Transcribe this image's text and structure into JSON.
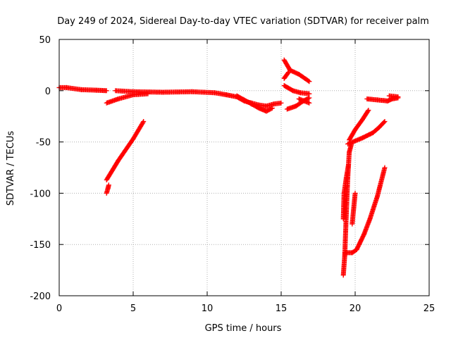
{
  "chart_data": {
    "type": "scatter",
    "title": "Day 249 of 2024, Sidereal Day-to-day VTEC variation (SDTVAR) for receiver palm",
    "xlabel": "GPS time / hours",
    "ylabel": "SDTVAR / TECUs",
    "xlim": [
      0,
      25
    ],
    "ylim": [
      -200,
      50
    ],
    "xticks": [
      "0",
      "5",
      "10",
      "15",
      "20",
      "25"
    ],
    "yticks": [
      "50",
      "0",
      "-50",
      "-100",
      "-150",
      "-200"
    ],
    "grid": true,
    "legend": "none",
    "marker": "+",
    "color": "#ff0000",
    "series": [
      {
        "tracks": [
          [
            [
              0.0,
              3
            ],
            [
              0.5,
              3
            ],
            [
              1.5,
              1
            ],
            [
              2.5,
              0.5
            ],
            [
              3.2,
              0
            ]
          ],
          [
            [
              3.8,
              0
            ],
            [
              5.0,
              -1
            ],
            [
              7.0,
              -1.5
            ],
            [
              9.0,
              -1
            ],
            [
              10.5,
              -2
            ],
            [
              11.3,
              -4
            ],
            [
              12.0,
              -6
            ],
            [
              12.5,
              -10
            ],
            [
              13.0,
              -12
            ],
            [
              13.5,
              -14
            ],
            [
              14.0,
              -15
            ],
            [
              14.5,
              -13
            ],
            [
              15.0,
              -12
            ]
          ],
          [
            [
              3.2,
              -12
            ],
            [
              4.0,
              -8
            ],
            [
              5.0,
              -4
            ],
            [
              6.0,
              -3
            ]
          ],
          [
            [
              12.0,
              -5
            ],
            [
              12.5,
              -9
            ],
            [
              13.0,
              -13
            ],
            [
              13.5,
              -17
            ],
            [
              14.0,
              -20
            ],
            [
              14.4,
              -17
            ]
          ],
          [
            [
              3.2,
              -100
            ],
            [
              3.3,
              -95
            ],
            [
              3.35,
              -92
            ]
          ],
          [
            [
              3.2,
              -87
            ],
            [
              4.0,
              -68
            ],
            [
              5.0,
              -47
            ],
            [
              5.7,
              -30
            ]
          ],
          [
            [
              15.2,
              30
            ],
            [
              15.6,
              20
            ],
            [
              16.2,
              16
            ],
            [
              16.9,
              9
            ]
          ],
          [
            [
              15.2,
              12
            ],
            [
              15.5,
              18
            ]
          ],
          [
            [
              15.2,
              5
            ],
            [
              15.8,
              0
            ],
            [
              16.3,
              -2
            ],
            [
              16.9,
              -3
            ]
          ],
          [
            [
              15.4,
              -18
            ],
            [
              16.0,
              -15
            ],
            [
              16.5,
              -10
            ],
            [
              16.9,
              -7
            ]
          ],
          [
            [
              16.2,
              -8
            ],
            [
              16.9,
              -12
            ]
          ],
          [
            [
              19.2,
              -180
            ],
            [
              19.3,
              -160
            ],
            [
              19.4,
              -120
            ],
            [
              19.5,
              -85
            ],
            [
              19.6,
              -60
            ],
            [
              19.75,
              -52
            ]
          ],
          [
            [
              19.2,
              -125
            ],
            [
              19.25,
              -100
            ],
            [
              19.4,
              -85
            ],
            [
              19.55,
              -72
            ]
          ],
          [
            [
              19.3,
              -158
            ],
            [
              19.8,
              -158
            ],
            [
              20.1,
              -155
            ],
            [
              20.6,
              -140
            ],
            [
              21.0,
              -125
            ],
            [
              21.5,
              -103
            ],
            [
              22.0,
              -75
            ]
          ],
          [
            [
              19.8,
              -130
            ],
            [
              20.0,
              -100
            ]
          ],
          [
            [
              19.6,
              -48
            ],
            [
              20.0,
              -38
            ],
            [
              20.5,
              -28
            ],
            [
              20.9,
              -19
            ]
          ],
          [
            [
              19.5,
              -52
            ],
            [
              20.5,
              -46
            ],
            [
              21.2,
              -41
            ],
            [
              21.6,
              -36
            ],
            [
              22.0,
              -30
            ]
          ],
          [
            [
              20.8,
              -8
            ],
            [
              21.5,
              -9
            ],
            [
              22.2,
              -10
            ],
            [
              22.5,
              -8
            ],
            [
              22.9,
              -7
            ]
          ],
          [
            [
              22.3,
              -5
            ],
            [
              22.9,
              -6
            ]
          ]
        ]
      }
    ]
  }
}
